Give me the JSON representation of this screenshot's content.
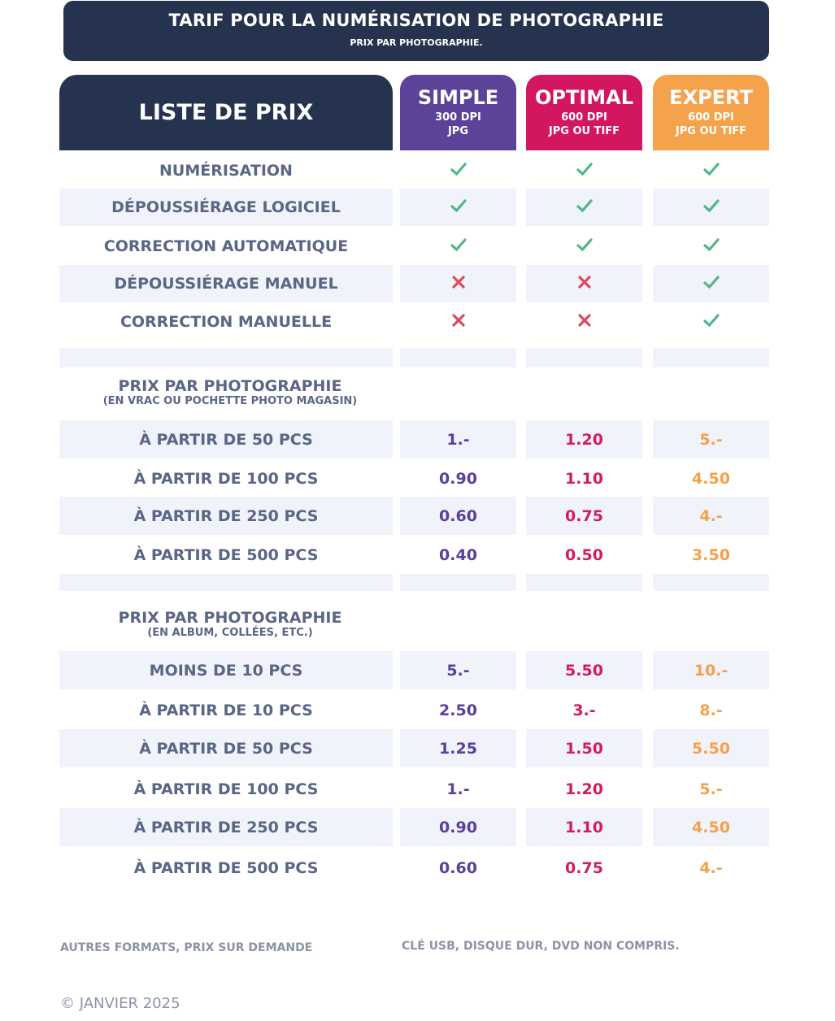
{
  "banner": {
    "title": "TARIF POUR LA NUMÉRISATION DE PHOTOGRAPHIE",
    "subtitle": "PRIX PAR PHOTOGRAPHIE."
  },
  "list_header": "LISTE DE PRIX",
  "tiers": [
    {
      "name": "SIMPLE",
      "line1": "300 DPI",
      "line2": "JPG",
      "color": "#5c4399"
    },
    {
      "name": "OPTIMAL",
      "line1": "600 DPI",
      "line2": "JPG OU TIFF",
      "color": "#d31660"
    },
    {
      "name": "EXPERT",
      "line1": "600 DPI",
      "line2": "JPG OU TIFF",
      "color": "#f4a24b"
    }
  ],
  "features": [
    {
      "label": "NUMÉRISATION",
      "values": [
        "check-icon",
        "check-icon",
        "check-icon"
      ]
    },
    {
      "label": "DÉPOUSSIÉRAGE  LOGICIEL",
      "values": [
        "check-icon",
        "check-icon",
        "check-icon"
      ]
    },
    {
      "label": "CORRECTION AUTOMATIQUE",
      "values": [
        "check-icon",
        "check-icon",
        "check-icon"
      ]
    },
    {
      "label": "DÉPOUSSIÉRAGE MANUEL",
      "values": [
        "cross-icon",
        "cross-icon",
        "check-icon"
      ]
    },
    {
      "label": "CORRECTION MANUELLE",
      "values": [
        "cross-icon",
        "cross-icon",
        "check-icon"
      ]
    }
  ],
  "section_loose": {
    "title": "PRIX PAR PHOTOGRAPHIE",
    "subtitle": "(EN VRAC OU POCHETTE PHOTO MAGASIN)",
    "rows": [
      {
        "label": "À PARTIR DE 50 PCS",
        "values": [
          "1.-",
          "1.20",
          "5.-"
        ]
      },
      {
        "label": "À PARTIR DE 100 PCS",
        "values": [
          "0.90",
          "1.10",
          "4.50"
        ]
      },
      {
        "label": "À PARTIR DE 250 PCS",
        "values": [
          "0.60",
          "0.75",
          "4.-"
        ]
      },
      {
        "label": "À PARTIR DE 500 PCS",
        "values": [
          "0.40",
          "0.50",
          "3.50"
        ]
      }
    ]
  },
  "section_album": {
    "title": "PRIX PAR PHOTOGRAPHIE",
    "subtitle": "(EN ALBUM, COLLÉES, ETC.)",
    "rows": [
      {
        "label": "MOINS DE 10 PCS",
        "values": [
          "5.-",
          "5.50",
          "10.-"
        ]
      },
      {
        "label": "À PARTIR DE 10 PCS",
        "values": [
          "2.50",
          "3.-",
          "8.-"
        ]
      },
      {
        "label": "À PARTIR DE 50 PCS",
        "values": [
          "1.25",
          "1.50",
          "5.50"
        ]
      },
      {
        "label": "À PARTIR DE 100 PCS",
        "values": [
          "1.-",
          "1.20",
          "5.-"
        ]
      },
      {
        "label": "À PARTIR DE 250 PCS",
        "values": [
          "0.90",
          "1.10",
          "4.50"
        ]
      },
      {
        "label": "À PARTIR DE 500 PCS",
        "values": [
          "0.60",
          "0.75",
          "4.-"
        ]
      }
    ]
  },
  "footer": {
    "note_left": "AUTRES FORMATS, PRIX SUR DEMANDE",
    "note_right": "CLÉ USB, DISQUE DUR, DVD NON COMPRIS.",
    "copyright": "© JANVIER 2025"
  },
  "colors": {
    "navy": "#26334f",
    "label_text": "#5a6685",
    "row_shade": "#f0f3fa",
    "check": "#4fb786",
    "cross": "#e0485d"
  }
}
